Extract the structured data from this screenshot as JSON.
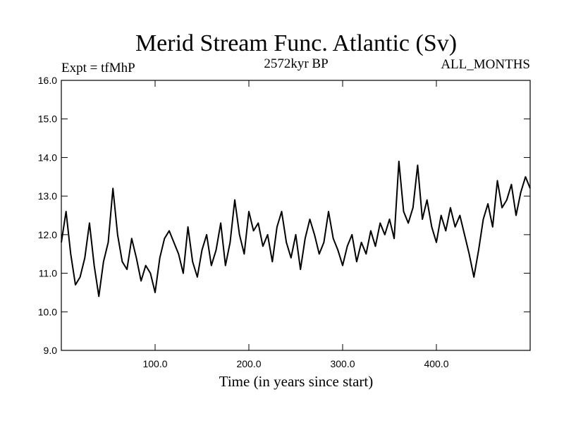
{
  "chart_data": {
    "type": "line",
    "title": "Merid Stream Func. Atlantic (Sv)",
    "subtitle_left": "Expt = tfMhP",
    "subtitle_center": "2572kyr BP",
    "subtitle_right": "ALL_MONTHS",
    "xlabel": "Time (in years since start)",
    "ylabel": "",
    "xlim": [
      0,
      500
    ],
    "ylim": [
      9.0,
      16.0
    ],
    "xticks": [
      100,
      200,
      300,
      400
    ],
    "xtick_labels": [
      "100.0",
      "200.0",
      "300.0",
      "400.0"
    ],
    "yticks": [
      9,
      10,
      11,
      12,
      13,
      14,
      15,
      16
    ],
    "ytick_labels": [
      "9.0",
      "10.0",
      "11.0",
      "12.0",
      "13.0",
      "14.0",
      "15.0",
      "16.0"
    ],
    "grid": false,
    "series": [
      {
        "name": "Merid Stream Func. Atlantic",
        "color": "#000000",
        "x": [
          0,
          5,
          10,
          15,
          20,
          25,
          30,
          35,
          40,
          45,
          50,
          55,
          60,
          65,
          70,
          75,
          80,
          85,
          90,
          95,
          100,
          105,
          110,
          115,
          120,
          125,
          130,
          135,
          140,
          145,
          150,
          155,
          160,
          165,
          170,
          175,
          180,
          185,
          190,
          195,
          200,
          205,
          210,
          215,
          220,
          225,
          230,
          235,
          240,
          245,
          250,
          255,
          260,
          265,
          270,
          275,
          280,
          285,
          290,
          295,
          300,
          305,
          310,
          315,
          320,
          325,
          330,
          335,
          340,
          345,
          350,
          355,
          360,
          365,
          370,
          375,
          380,
          385,
          390,
          395,
          400,
          405,
          410,
          415,
          420,
          425,
          430,
          435,
          440,
          445,
          450,
          455,
          460,
          465,
          470,
          475,
          480,
          485,
          490,
          495,
          500
        ],
        "values": [
          11.8,
          12.6,
          11.5,
          10.7,
          10.9,
          11.4,
          12.3,
          11.2,
          10.4,
          11.3,
          11.8,
          13.2,
          12.0,
          11.3,
          11.1,
          11.9,
          11.4,
          10.8,
          11.2,
          11.0,
          10.5,
          11.4,
          11.9,
          12.1,
          11.8,
          11.5,
          11.0,
          12.2,
          11.3,
          10.9,
          11.6,
          12.0,
          11.2,
          11.6,
          12.3,
          11.2,
          11.8,
          12.9,
          12.0,
          11.5,
          12.6,
          12.1,
          12.3,
          11.7,
          12.0,
          11.3,
          12.2,
          12.6,
          11.8,
          11.4,
          12.0,
          11.1,
          11.9,
          12.4,
          12.0,
          11.5,
          11.8,
          12.6,
          11.9,
          11.6,
          11.2,
          11.7,
          12.0,
          11.3,
          11.8,
          11.5,
          12.1,
          11.7,
          12.3,
          12.0,
          12.4,
          11.9,
          13.9,
          12.6,
          12.3,
          12.7,
          13.8,
          12.4,
          12.9,
          12.2,
          11.8,
          12.5,
          12.1,
          12.7,
          12.2,
          12.5,
          12.0,
          11.5,
          10.9,
          11.6,
          12.4,
          12.8,
          12.2,
          13.4,
          12.7,
          12.9,
          13.3,
          12.5,
          13.1,
          13.5,
          13.2
        ]
      }
    ]
  }
}
